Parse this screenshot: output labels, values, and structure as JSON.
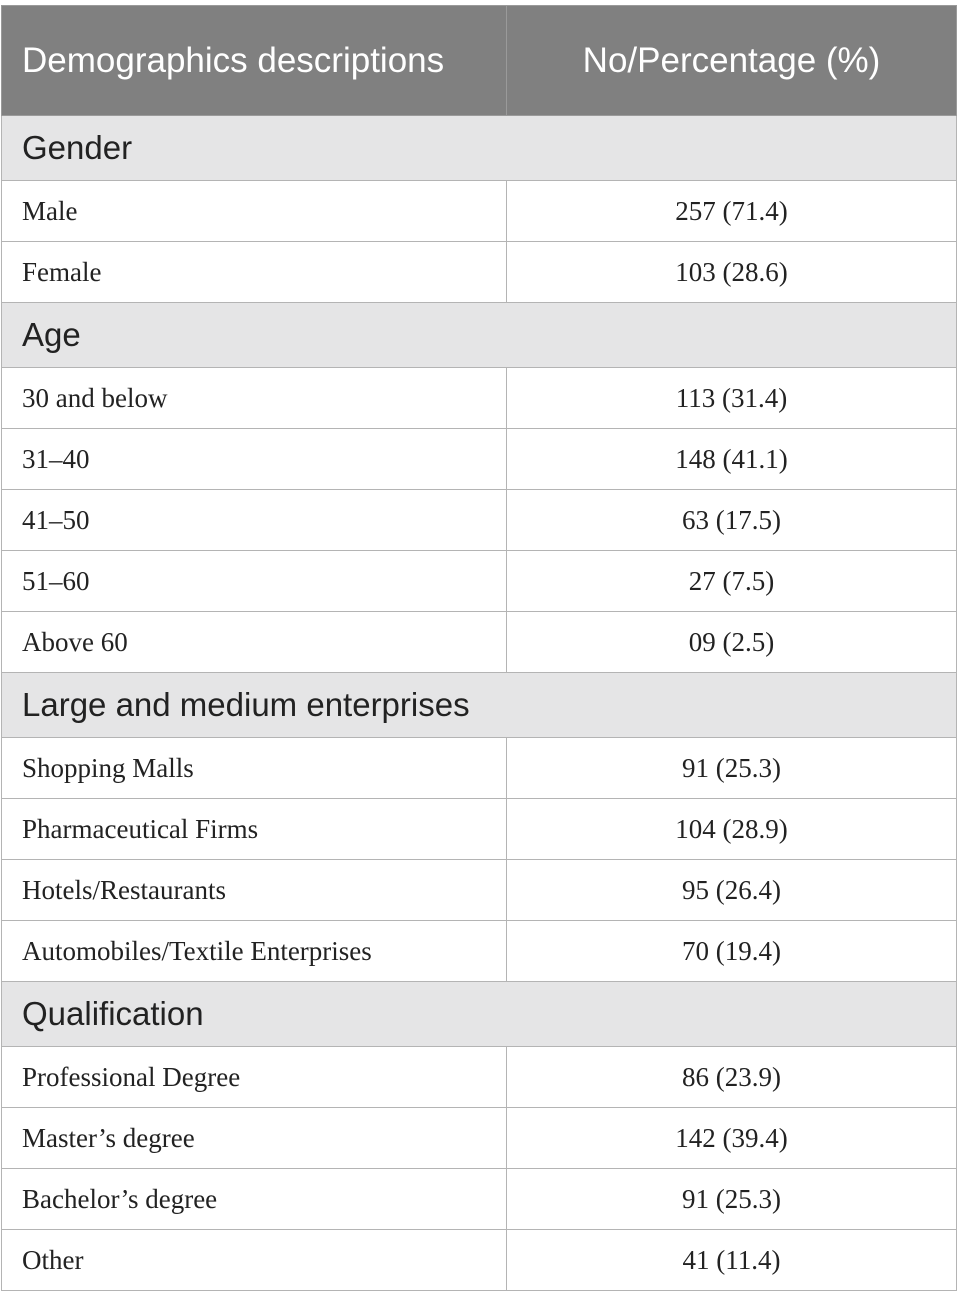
{
  "table": {
    "headers": [
      "Demographics descriptions",
      "No/Percentage (%)"
    ],
    "sections": [
      {
        "title": "Gender",
        "rows": [
          {
            "label": "Male",
            "value": "257 (71.4)"
          },
          {
            "label": "Female",
            "value": "103 (28.6)"
          }
        ]
      },
      {
        "title": "Age",
        "rows": [
          {
            "label": "30 and below",
            "value": "113 (31.4)"
          },
          {
            "label": "31–40",
            "value": "148 (41.1)"
          },
          {
            "label": "41–50",
            "value": "63 (17.5)"
          },
          {
            "label": "51–60",
            "value": "27 (7.5)"
          },
          {
            "label": "Above 60",
            "value": "09 (2.5)"
          }
        ]
      },
      {
        "title": "Large and medium enterprises",
        "rows": [
          {
            "label": "Shopping Malls",
            "value": "91 (25.3)"
          },
          {
            "label": "Pharmaceutical Firms",
            "value": "104 (28.9)"
          },
          {
            "label": "Hotels/Restaurants",
            "value": "95 (26.4)"
          },
          {
            "label": "Automobiles/Textile Enterprises",
            "value": "70 (19.4)"
          }
        ]
      },
      {
        "title": "Qualification",
        "rows": [
          {
            "label": "Professional Degree",
            "value": "86 (23.9)"
          },
          {
            "label": "Master’s degree",
            "value": "142 (39.4)"
          },
          {
            "label": "Bachelor’s degree",
            "value": "91 (25.3)"
          },
          {
            "label": "Other",
            "value": "41 (11.4)"
          }
        ]
      }
    ]
  },
  "colors": {
    "header_bg": "#808080",
    "header_text": "#ffffff",
    "section_bg": "#e5e5e6",
    "border": "#b4b4b4"
  }
}
